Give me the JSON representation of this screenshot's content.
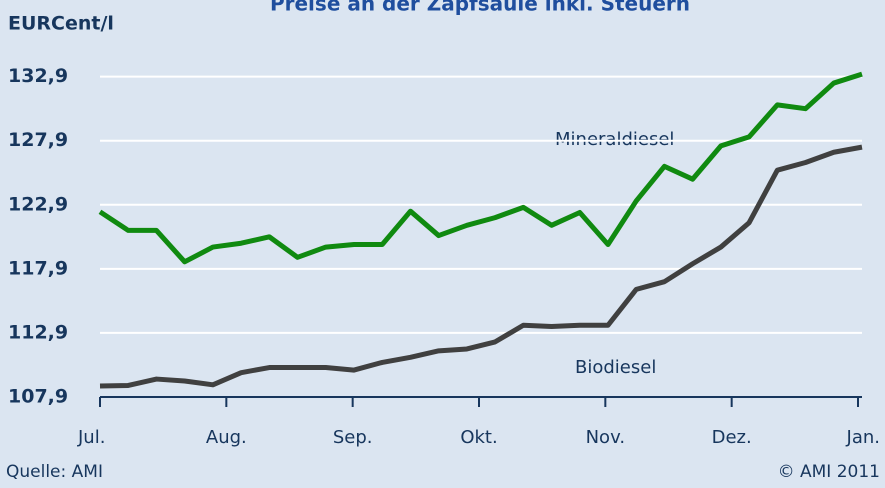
{
  "chart_data": {
    "type": "line",
    "title": "Preise an der Zapfsäule inkl. Steuern",
    "y_label": "EURCent/l",
    "x_labels": [
      "Jul.",
      "Aug.",
      "Sep.",
      "Okt.",
      "Nov.",
      "Dez.",
      "Jan."
    ],
    "series": [
      {
        "name": "Mineraldiesel",
        "color": "#108a10",
        "values": [
          122.35,
          120.9,
          120.9,
          118.45,
          119.6,
          119.9,
          120.4,
          118.8,
          119.6,
          119.8,
          119.8,
          122.4,
          120.5,
          121.3,
          121.9,
          122.7,
          121.3,
          122.3,
          119.8,
          123.2,
          125.9,
          124.9,
          127.5,
          128.2,
          130.7,
          130.4,
          132.4,
          133.1
        ]
      },
      {
        "name": "Biodiesel",
        "color": "#404040",
        "values": [
          108.76,
          108.8,
          109.3,
          109.15,
          108.85,
          109.8,
          110.2,
          110.2,
          110.2,
          110.0,
          110.6,
          111.0,
          111.5,
          111.65,
          112.2,
          113.5,
          113.4,
          113.5,
          113.5,
          116.3,
          116.9,
          118.3,
          119.6,
          121.5,
          125.6,
          126.2,
          127.0,
          127.4
        ]
      }
    ],
    "ylim": [
      107.9,
      134.2
    ],
    "yticks": [
      {
        "value": 107.9,
        "label": "107,9"
      },
      {
        "value": 112.9,
        "label": "112,9"
      },
      {
        "value": 117.9,
        "label": "117,9"
      },
      {
        "value": 122.9,
        "label": "122,9"
      },
      {
        "value": 127.9,
        "label": "127,9"
      },
      {
        "value": 132.9,
        "label": "132,9"
      }
    ],
    "grid": true,
    "source": "Quelle: AMI",
    "copyright": "© AMI 2011"
  }
}
